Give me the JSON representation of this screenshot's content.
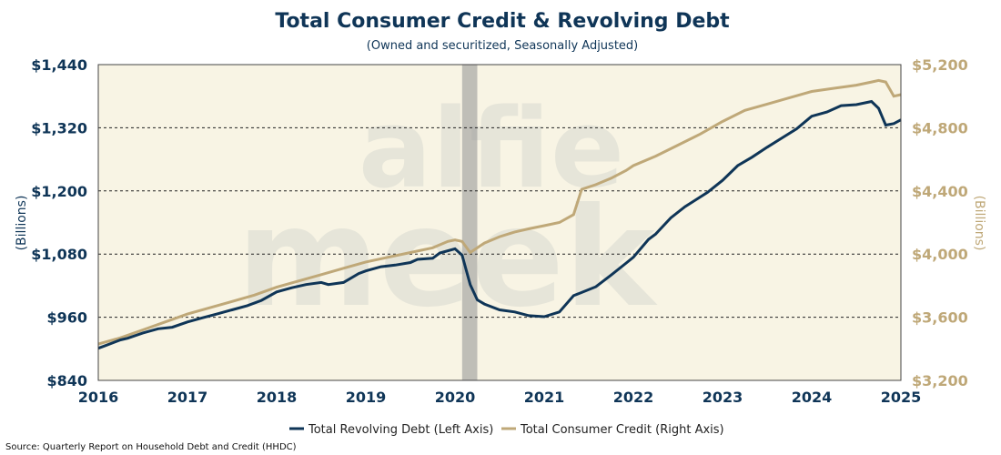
{
  "chart_data": {
    "type": "line",
    "title": "Total Consumer Credit & Revolving Debt",
    "subtitle": "(Owned and securitized, Seasonally Adjusted)",
    "ylabel_left": "(Billions)",
    "ylabel_right": "(Billions)",
    "source": "Source: Quarterly Report on Household Debt and Credit (HHDC)",
    "watermark": "alfie meek",
    "x_range": [
      2016,
      2025
    ],
    "x_ticks": [
      2016,
      2017,
      2018,
      2019,
      2020,
      2021,
      2022,
      2023,
      2024,
      2025
    ],
    "y_left_range": [
      840,
      1440
    ],
    "y_left_ticks": [
      840,
      960,
      1080,
      1200,
      1320,
      1440
    ],
    "y_left_tick_labels": [
      "$840",
      "$960",
      "$1,080",
      "$1,200",
      "$1,320",
      "$1,440"
    ],
    "y_right_range": [
      3200,
      5200
    ],
    "y_right_ticks": [
      3200,
      3600,
      4000,
      4400,
      4800,
      5200
    ],
    "y_right_tick_labels": [
      "$3,200",
      "$3,600",
      "$4,000",
      "$4,400",
      "$4,800",
      "$5,200"
    ],
    "dashed_gridlines_left": [
      960,
      1080,
      1200,
      1320
    ],
    "shaded_period": [
      2020.08,
      2020.25
    ],
    "legend": [
      "Total Revolving Debt (Left Axis)",
      "Total Consumer Credit (Right Axis)"
    ],
    "legend_position": "bottom-center",
    "colors": {
      "revolving": "#0f3557",
      "consumer": "#bfa878",
      "plot_bg": "#f8f4e4",
      "shade": "#9a9a9a",
      "axis_text_left": "#0f3557",
      "axis_text_right": "#bfa878"
    },
    "series": [
      {
        "name": "Total Revolving Debt (Left Axis)",
        "axis": "left",
        "x": [
          2016.0,
          2016.08,
          2016.25,
          2016.33,
          2016.5,
          2016.67,
          2016.83,
          2017.0,
          2017.17,
          2017.33,
          2017.5,
          2017.67,
          2017.83,
          2018.0,
          2018.17,
          2018.33,
          2018.5,
          2018.58,
          2018.75,
          2018.92,
          2019.0,
          2019.17,
          2019.33,
          2019.5,
          2019.58,
          2019.75,
          2019.83,
          2020.0,
          2020.08,
          2020.17,
          2020.25,
          2020.33,
          2020.5,
          2020.67,
          2020.83,
          2021.0,
          2021.17,
          2021.33,
          2021.42,
          2021.58,
          2021.75,
          2021.92,
          2022.0,
          2022.17,
          2022.25,
          2022.42,
          2022.58,
          2022.83,
          2023.0,
          2023.17,
          2023.33,
          2023.5,
          2023.67,
          2023.83,
          2024.0,
          2024.17,
          2024.33,
          2024.5,
          2024.67,
          2024.75,
          2024.83,
          2024.92,
          2025.0
        ],
        "y": [
          901,
          906,
          917,
          920,
          930,
          938,
          941,
          951,
          959,
          966,
          974,
          982,
          992,
          1008,
          1016,
          1022,
          1026,
          1022,
          1026,
          1043,
          1048,
          1056,
          1059,
          1064,
          1070,
          1072,
          1082,
          1090,
          1078,
          1022,
          993,
          985,
          974,
          970,
          963,
          961,
          970,
          1001,
          1007,
          1018,
          1040,
          1063,
          1074,
          1108,
          1118,
          1149,
          1170,
          1197,
          1220,
          1248,
          1264,
          1283,
          1301,
          1318,
          1342,
          1350,
          1362,
          1364,
          1370,
          1357,
          1325,
          1328,
          1335
        ]
      },
      {
        "name": "Total Consumer Credit (Right Axis)",
        "axis": "right",
        "x": [
          2016.0,
          2016.25,
          2016.5,
          2016.75,
          2017.0,
          2017.25,
          2017.5,
          2017.75,
          2018.0,
          2018.25,
          2018.5,
          2018.75,
          2019.0,
          2019.25,
          2019.5,
          2019.75,
          2019.92,
          2020.0,
          2020.08,
          2020.17,
          2020.33,
          2020.5,
          2020.67,
          2020.83,
          2021.0,
          2021.17,
          2021.33,
          2021.42,
          2021.58,
          2021.75,
          2021.92,
          2022.0,
          2022.25,
          2022.5,
          2022.75,
          2023.0,
          2023.25,
          2023.5,
          2023.75,
          2024.0,
          2024.25,
          2024.5,
          2024.67,
          2024.75,
          2024.83,
          2024.92,
          2025.0
        ],
        "y": [
          3430,
          3470,
          3520,
          3570,
          3620,
          3660,
          3700,
          3740,
          3790,
          3830,
          3870,
          3910,
          3950,
          3980,
          4010,
          4040,
          4080,
          4090,
          4080,
          4010,
          4070,
          4110,
          4140,
          4160,
          4180,
          4200,
          4250,
          4410,
          4440,
          4480,
          4530,
          4560,
          4620,
          4690,
          4760,
          4840,
          4910,
          4950,
          4990,
          5030,
          5050,
          5070,
          5090,
          5100,
          5090,
          5000,
          5010
        ]
      }
    ]
  }
}
